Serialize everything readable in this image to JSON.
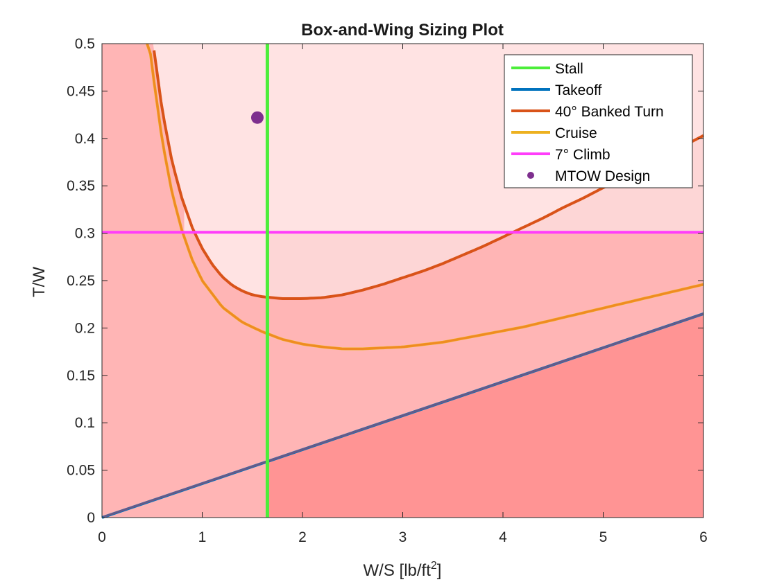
{
  "chart_data": {
    "type": "line",
    "title": "Box-and-Wing Sizing Plot",
    "xlabel_main": "W/S [lb/ft",
    "xlabel_sup": "2",
    "xlabel_close": "]",
    "ylabel": "T/W",
    "xlim": [
      0,
      6
    ],
    "ylim": [
      0,
      0.5
    ],
    "xticks": [
      0,
      1,
      2,
      3,
      4,
      5,
      6
    ],
    "xtick_labels": [
      "0",
      "1",
      "2",
      "3",
      "4",
      "5",
      "6"
    ],
    "yticks": [
      0,
      0.05,
      0.1,
      0.15,
      0.2,
      0.25,
      0.3,
      0.35,
      0.4,
      0.45,
      0.5
    ],
    "ytick_labels": [
      "0",
      "0.05",
      "0.1",
      "0.15",
      "0.2",
      "0.25",
      "0.3",
      "0.35",
      "0.4",
      "0.45",
      "0.5"
    ],
    "grid": false,
    "legend_position": "top-right",
    "colors": {
      "stall": "#4cee3a",
      "takeoff": "#0072bd",
      "takeoff_overlay": "#665a88",
      "turn": "#d95319",
      "cruise": "#edb120",
      "cruise_overlay": "#f08a22",
      "climb": "#ff3dfa",
      "design": "#7e2f8e",
      "fill_light": "#fdd6d6",
      "fill_medium": "#ffb5b5",
      "fill_dark": "#ff9494",
      "fill_faint": "#ffe3e3",
      "fill_top": "#ffe8e8"
    },
    "series": [
      {
        "name": "Stall",
        "kind": "vertical",
        "x": 1.65
      },
      {
        "name": "Takeoff",
        "kind": "line",
        "x": [
          0,
          6
        ],
        "y": [
          0,
          0.215
        ]
      },
      {
        "name": "40° Banked Turn",
        "kind": "curve",
        "x": [
          0.45,
          0.5,
          0.6,
          0.7,
          0.8,
          0.9,
          1.0,
          1.1,
          1.2,
          1.3,
          1.4,
          1.5,
          1.6,
          1.7,
          1.8,
          1.9,
          2.0,
          2.2,
          2.4,
          2.6,
          2.8,
          3.0,
          3.2,
          3.4,
          3.6,
          3.8,
          4.0,
          4.2,
          4.4,
          4.6,
          4.8,
          5.0,
          5.2,
          5.4,
          5.6,
          5.8,
          6.0
        ],
        "y": [
          0.556,
          0.508,
          0.43,
          0.375,
          0.336,
          0.306,
          0.284,
          0.267,
          0.254,
          0.245,
          0.239,
          0.235,
          0.233,
          0.232,
          0.231,
          0.231,
          0.231,
          0.232,
          0.235,
          0.24,
          0.246,
          0.253,
          0.26,
          0.268,
          0.277,
          0.286,
          0.296,
          0.306,
          0.316,
          0.327,
          0.337,
          0.348,
          0.359,
          0.37,
          0.381,
          0.392,
          0.403
        ]
      },
      {
        "name": "Cruise",
        "kind": "curve",
        "x": [
          0.45,
          0.5,
          0.6,
          0.7,
          0.8,
          0.9,
          1.0,
          1.2,
          1.4,
          1.6,
          1.8,
          2.0,
          2.2,
          2.4,
          2.6,
          2.8,
          3.0,
          3.4,
          3.8,
          4.2,
          4.6,
          5.0,
          5.4,
          5.8,
          6.0
        ],
        "y": [
          0.52,
          0.475,
          0.398,
          0.342,
          0.302,
          0.272,
          0.25,
          0.222,
          0.206,
          0.196,
          0.188,
          0.183,
          0.18,
          0.178,
          0.178,
          0.179,
          0.18,
          0.185,
          0.193,
          0.201,
          0.211,
          0.221,
          0.231,
          0.241,
          0.246
        ]
      },
      {
        "name": "7° Climb",
        "kind": "horizontal",
        "y": 0.301
      }
    ],
    "points": [
      {
        "name": "MTOW Design",
        "x": 1.55,
        "y": 0.422
      }
    ],
    "legend": [
      "Stall",
      "Takeoff",
      "40° Banked Turn",
      "Cruise",
      "7° Climb",
      "MTOW Design"
    ]
  }
}
